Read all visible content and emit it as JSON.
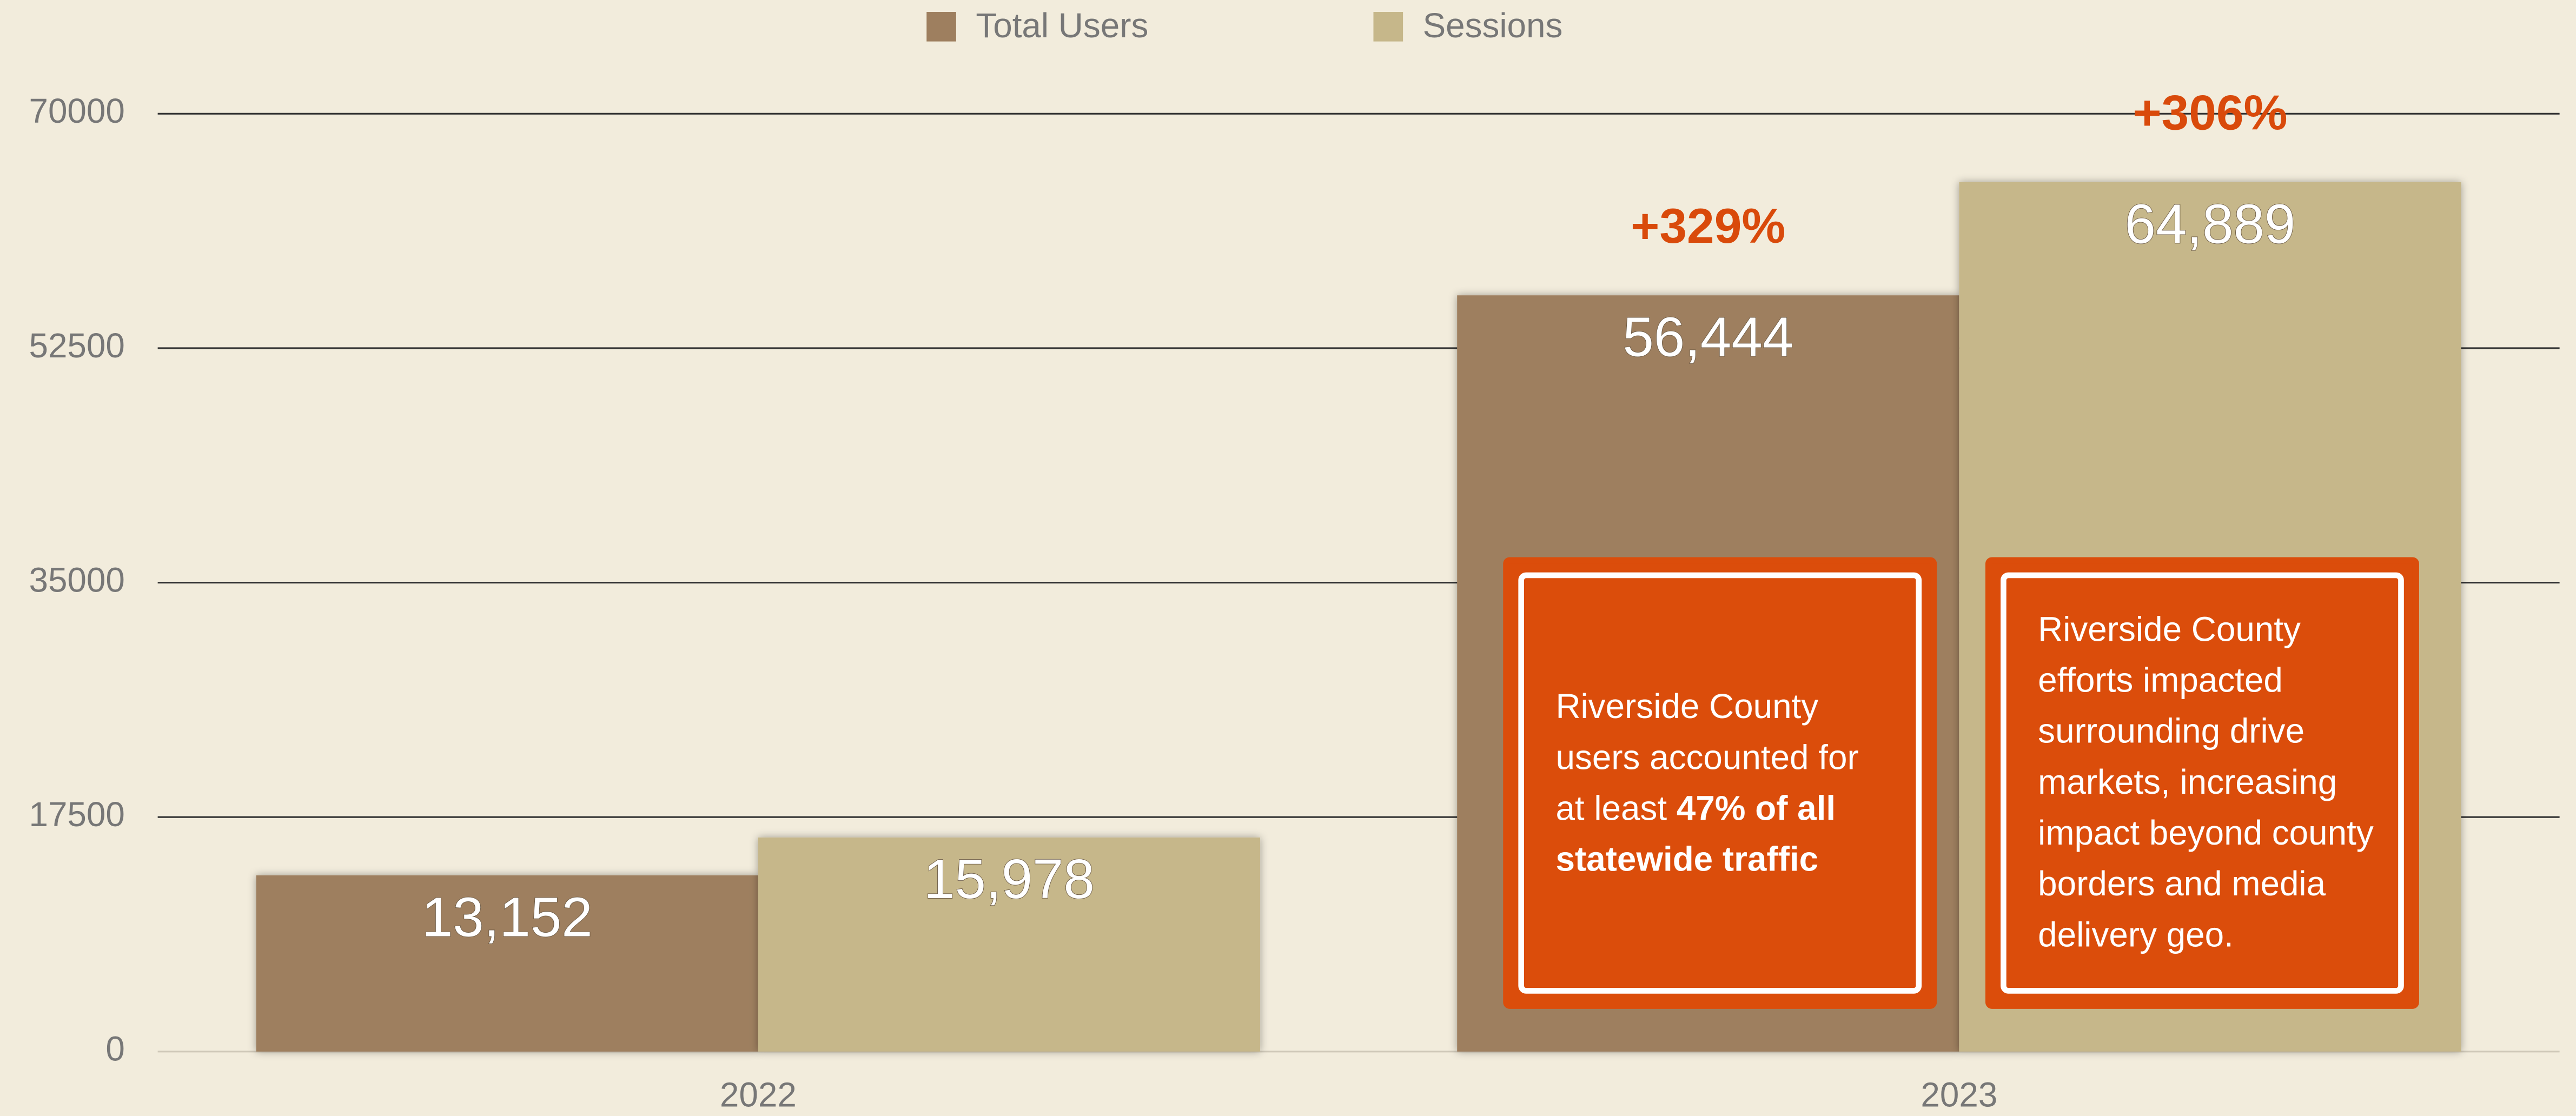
{
  "chart_data": {
    "type": "bar",
    "categories": [
      "2022",
      "2023"
    ],
    "series": [
      {
        "name": "Total Users",
        "color": "#9e7f5f",
        "values": [
          13152,
          56444
        ],
        "value_labels": [
          "13,152",
          "56,444"
        ]
      },
      {
        "name": "Sessions",
        "color": "#c6b78a",
        "values": [
          15978,
          64889
        ],
        "value_labels": [
          "15,978",
          "64,889"
        ]
      }
    ],
    "ylim": [
      0,
      70000
    ],
    "yticks": [
      0,
      17500,
      35000,
      52500,
      70000
    ],
    "grid": true,
    "legend": "top",
    "annotations": [
      "+329%",
      "+306%"
    ],
    "callouts": [
      {
        "parts": [
          {
            "text": "Riverside County users accounted for at least "
          },
          {
            "text": "47% of all statewide traffic",
            "bold": true
          }
        ]
      },
      {
        "parts": [
          {
            "text": "Riverside County efforts impacted surrounding drive markets, increasing impact beyond county borders and media delivery geo."
          }
        ]
      }
    ],
    "callout_color": "#db4d0b",
    "annotation_color": "#d94a0b"
  }
}
